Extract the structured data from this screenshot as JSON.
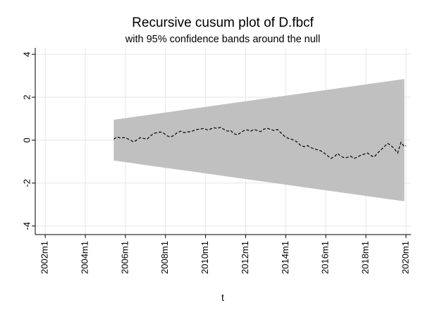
{
  "chart_data": {
    "type": "line",
    "title": "Recursive cusum plot of D.fbcf",
    "subtitle": "with 95% confidence bands around the null",
    "xlabel": "t",
    "ylabel": "",
    "xlim": [
      "2001m7",
      "2020m4"
    ],
    "ylim": [
      -4.4,
      4.3
    ],
    "grid": true,
    "legend": "none",
    "x_ticks": [
      {
        "label": "2002m1",
        "value": 2002.0
      },
      {
        "label": "2004m1",
        "value": 2004.0
      },
      {
        "label": "2006m1",
        "value": 2006.0
      },
      {
        "label": "2008m1",
        "value": 2008.0
      },
      {
        "label": "2010m1",
        "value": 2010.0
      },
      {
        "label": "2012m1",
        "value": 2012.0
      },
      {
        "label": "2014m1",
        "value": 2014.0
      },
      {
        "label": "2016m1",
        "value": 2016.0
      },
      {
        "label": "2018m1",
        "value": 2018.0
      },
      {
        "label": "2020m1",
        "value": 2020.0
      }
    ],
    "y_ticks": [
      {
        "label": "4",
        "value": 4
      },
      {
        "label": "2",
        "value": 2
      },
      {
        "label": "0",
        "value": 0
      },
      {
        "label": "-2",
        "value": -2
      },
      {
        "label": "-4",
        "value": -4
      }
    ],
    "confidence_band": {
      "x": [
        "2005m6",
        "2019m12"
      ],
      "upper": [
        0.95,
        2.85
      ],
      "lower": [
        -0.95,
        -2.85
      ],
      "color": "#c0c0c0"
    },
    "series": [
      {
        "line_style": "dashed",
        "color": "#000000",
        "points": [
          [
            "2005m6",
            0.05
          ],
          [
            "2005m8",
            0.15
          ],
          [
            "2005m10",
            0.1
          ],
          [
            "2005m12",
            0.12
          ],
          [
            "2006m2",
            0.08
          ],
          [
            "2006m4",
            0.0
          ],
          [
            "2006m6",
            -0.08
          ],
          [
            "2006m8",
            0.02
          ],
          [
            "2006m10",
            0.12
          ],
          [
            "2006m12",
            0.08
          ],
          [
            "2007m2",
            0.05
          ],
          [
            "2007m4",
            0.2
          ],
          [
            "2007m6",
            0.32
          ],
          [
            "2007m8",
            0.35
          ],
          [
            "2007m10",
            0.38
          ],
          [
            "2007m12",
            0.32
          ],
          [
            "2008m2",
            0.2
          ],
          [
            "2008m4",
            0.15
          ],
          [
            "2008m6",
            0.22
          ],
          [
            "2008m8",
            0.35
          ],
          [
            "2008m10",
            0.42
          ],
          [
            "2008m12",
            0.35
          ],
          [
            "2009m2",
            0.38
          ],
          [
            "2009m4",
            0.4
          ],
          [
            "2009m6",
            0.45
          ],
          [
            "2009m8",
            0.5
          ],
          [
            "2009m10",
            0.52
          ],
          [
            "2009m12",
            0.55
          ],
          [
            "2010m2",
            0.48
          ],
          [
            "2010m4",
            0.52
          ],
          [
            "2010m6",
            0.58
          ],
          [
            "2010m8",
            0.55
          ],
          [
            "2010m10",
            0.6
          ],
          [
            "2010m12",
            0.5
          ],
          [
            "2011m2",
            0.42
          ],
          [
            "2011m4",
            0.45
          ],
          [
            "2011m6",
            0.3
          ],
          [
            "2011m8",
            0.25
          ],
          [
            "2011m10",
            0.35
          ],
          [
            "2011m12",
            0.45
          ],
          [
            "2012m2",
            0.48
          ],
          [
            "2012m4",
            0.42
          ],
          [
            "2012m6",
            0.5
          ],
          [
            "2012m8",
            0.45
          ],
          [
            "2012m10",
            0.4
          ],
          [
            "2012m12",
            0.52
          ],
          [
            "2013m2",
            0.55
          ],
          [
            "2013m4",
            0.5
          ],
          [
            "2013m6",
            0.45
          ],
          [
            "2013m8",
            0.5
          ],
          [
            "2013m10",
            0.35
          ],
          [
            "2013m12",
            0.2
          ],
          [
            "2014m2",
            0.1
          ],
          [
            "2014m4",
            0.05
          ],
          [
            "2014m6",
            0.0
          ],
          [
            "2014m8",
            -0.1
          ],
          [
            "2014m10",
            -0.25
          ],
          [
            "2014m12",
            -0.3
          ],
          [
            "2015m2",
            -0.25
          ],
          [
            "2015m4",
            -0.35
          ],
          [
            "2015m6",
            -0.4
          ],
          [
            "2015m8",
            -0.45
          ],
          [
            "2015m10",
            -0.5
          ],
          [
            "2015m12",
            -0.6
          ],
          [
            "2016m2",
            -0.72
          ],
          [
            "2016m4",
            -0.85
          ],
          [
            "2016m6",
            -0.78
          ],
          [
            "2016m8",
            -0.62
          ],
          [
            "2016m10",
            -0.75
          ],
          [
            "2016m12",
            -0.82
          ],
          [
            "2017m2",
            -0.8
          ],
          [
            "2017m4",
            -0.75
          ],
          [
            "2017m6",
            -0.85
          ],
          [
            "2017m8",
            -0.78
          ],
          [
            "2017m10",
            -0.7
          ],
          [
            "2017m12",
            -0.65
          ],
          [
            "2018m2",
            -0.6
          ],
          [
            "2018m4",
            -0.72
          ],
          [
            "2018m6",
            -0.78
          ],
          [
            "2018m8",
            -0.6
          ],
          [
            "2018m10",
            -0.45
          ],
          [
            "2018m12",
            -0.3
          ],
          [
            "2019m2",
            -0.15
          ],
          [
            "2019m4",
            -0.25
          ],
          [
            "2019m6",
            -0.4
          ],
          [
            "2019m8",
            -0.6
          ],
          [
            "2019m10",
            -0.1
          ],
          [
            "2019m12",
            -0.3
          ],
          [
            "2020m1",
            -0.25
          ]
        ]
      }
    ]
  }
}
